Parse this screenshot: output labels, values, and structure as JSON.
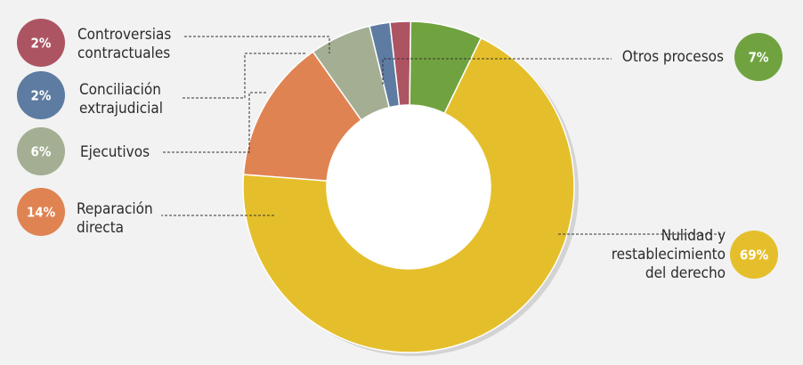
{
  "chart_data": {
    "type": "pie",
    "variant": "donut",
    "title": "",
    "slices": [
      {
        "label": "Nulidad y restablecimiento del derecho",
        "lines": [
          "Nulidad y",
          "restablecimiento",
          "del derecho"
        ],
        "value": 69,
        "display": "69%",
        "color": "#e5bf2b"
      },
      {
        "label": "Reparación directa",
        "lines": [
          "Reparación",
          "directa"
        ],
        "value": 14,
        "display": "14%",
        "color": "#e08352"
      },
      {
        "label": "Ejecutivos",
        "lines": [
          "Ejecutivos"
        ],
        "value": 6,
        "display": "6%",
        "color": "#a3ae93"
      },
      {
        "label": "Conciliación extrajudicial",
        "lines": [
          "Conciliación",
          "extrajudicial"
        ],
        "value": 2,
        "display": "2%",
        "color": "#5e7ba1"
      },
      {
        "label": "Controversias contractuales",
        "lines": [
          "Controversias",
          "contractuales"
        ],
        "value": 2,
        "display": "2%",
        "color": "#ad5463"
      },
      {
        "label": "Otros procesos",
        "lines": [
          "Otros procesos"
        ],
        "value": 7,
        "display": "7%",
        "color": "#70a33f"
      }
    ]
  }
}
